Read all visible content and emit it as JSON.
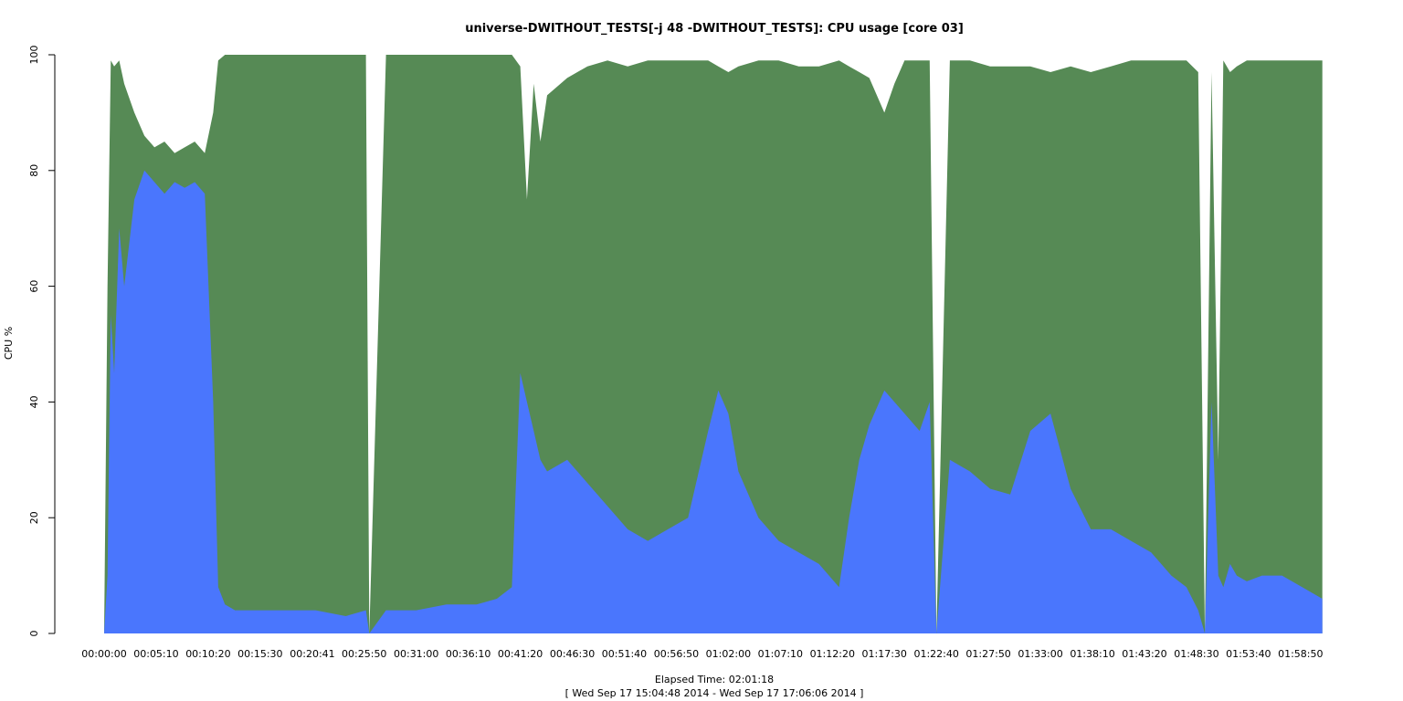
{
  "chart_data": {
    "type": "area",
    "title": "universe-DWITHOUT_TESTS[-j 48  -DWITHOUT_TESTS]: CPU usage [core 03]",
    "xlabel": "Elapsed Time: 02:01:18",
    "xlabel_sub": "[ Wed Sep 17 15:04:48 2014 - Wed Sep 17 17:06:06 2014 ]",
    "ylabel": "CPU %",
    "ylim": [
      0,
      100
    ],
    "xlim_seconds": [
      0,
      7278
    ],
    "y_ticks": [
      "0",
      "20",
      "40",
      "60",
      "80",
      "100"
    ],
    "x_tick_labels": [
      "00:00:00",
      "00:05:10",
      "00:10:20",
      "00:15:30",
      "00:20:41",
      "00:25:50",
      "00:31:00",
      "00:36:10",
      "00:41:20",
      "00:46:30",
      "00:51:40",
      "00:56:50",
      "01:02:00",
      "01:07:10",
      "01:12:20",
      "01:17:30",
      "01:22:40",
      "01:27:50",
      "01:33:00",
      "01:38:10",
      "01:43:20",
      "01:48:30",
      "01:53:40",
      "01:58:50"
    ],
    "grid": false,
    "series_colors": {
      "total": "#568a55",
      "user": "#4a76fd"
    },
    "x_elapsed": [
      "00:00:00",
      "00:00:20",
      "00:00:40",
      "00:01:00",
      "00:01:30",
      "00:02:00",
      "00:03:00",
      "00:04:00",
      "00:05:00",
      "00:06:00",
      "00:07:00",
      "00:08:00",
      "00:09:00",
      "00:10:00",
      "00:10:50",
      "00:11:20",
      "00:12:00",
      "00:13:00",
      "00:15:00",
      "00:18:00",
      "00:21:00",
      "00:24:00",
      "00:26:00",
      "00:26:20",
      "00:28:00",
      "00:31:00",
      "00:34:00",
      "00:37:00",
      "00:39:00",
      "00:40:30",
      "00:41:20",
      "00:42:00",
      "00:42:40",
      "00:43:20",
      "00:44:00",
      "00:46:00",
      "00:48:00",
      "00:50:00",
      "00:52:00",
      "00:54:00",
      "00:56:00",
      "00:58:00",
      "01:00:00",
      "01:01:00",
      "01:02:00",
      "01:03:00",
      "01:05:00",
      "01:07:00",
      "01:09:00",
      "01:11:00",
      "01:13:00",
      "01:14:00",
      "01:15:00",
      "01:16:00",
      "01:17:30",
      "01:18:30",
      "01:19:30",
      "01:21:00",
      "01:22:00",
      "01:22:40",
      "01:24:00",
      "01:26:00",
      "01:28:00",
      "01:30:00",
      "01:32:00",
      "01:34:00",
      "01:36:00",
      "01:38:00",
      "01:40:00",
      "01:42:00",
      "01:44:00",
      "01:46:00",
      "01:47:30",
      "01:48:40",
      "01:49:20",
      "01:50:00",
      "01:50:40",
      "01:51:10",
      "01:51:50",
      "01:52:30",
      "01:53:30",
      "01:55:00",
      "01:57:00",
      "01:59:00",
      "02:01:00"
    ],
    "series": [
      {
        "name": "total",
        "values": [
          0,
          60,
          99,
          98,
          99,
          95,
          90,
          86,
          84,
          85,
          83,
          84,
          85,
          83,
          90,
          99,
          100,
          100,
          100,
          100,
          100,
          100,
          100,
          0,
          100,
          100,
          100,
          100,
          100,
          100,
          98,
          75,
          95,
          85,
          93,
          96,
          98,
          99,
          98,
          99,
          99,
          99,
          99,
          98,
          97,
          98,
          99,
          99,
          98,
          98,
          99,
          98,
          97,
          96,
          90,
          95,
          99,
          99,
          99,
          0,
          99,
          99,
          98,
          98,
          98,
          97,
          98,
          97,
          98,
          99,
          99,
          99,
          99,
          97,
          0,
          97,
          30,
          99,
          97,
          98,
          99,
          99,
          99,
          99,
          99
        ]
      },
      {
        "name": "user",
        "values": [
          0,
          10,
          55,
          45,
          70,
          60,
          75,
          80,
          78,
          76,
          78,
          77,
          78,
          76,
          40,
          8,
          5,
          4,
          4,
          4,
          4,
          3,
          4,
          0,
          4,
          4,
          5,
          5,
          6,
          8,
          45,
          40,
          35,
          30,
          28,
          30,
          26,
          22,
          18,
          16,
          18,
          20,
          35,
          42,
          38,
          28,
          20,
          16,
          14,
          12,
          8,
          20,
          30,
          36,
          42,
          40,
          38,
          35,
          40,
          0,
          30,
          28,
          25,
          24,
          35,
          38,
          25,
          18,
          18,
          16,
          14,
          10,
          8,
          4,
          0,
          40,
          10,
          8,
          12,
          10,
          9,
          10,
          10,
          8,
          6
        ]
      }
    ]
  }
}
